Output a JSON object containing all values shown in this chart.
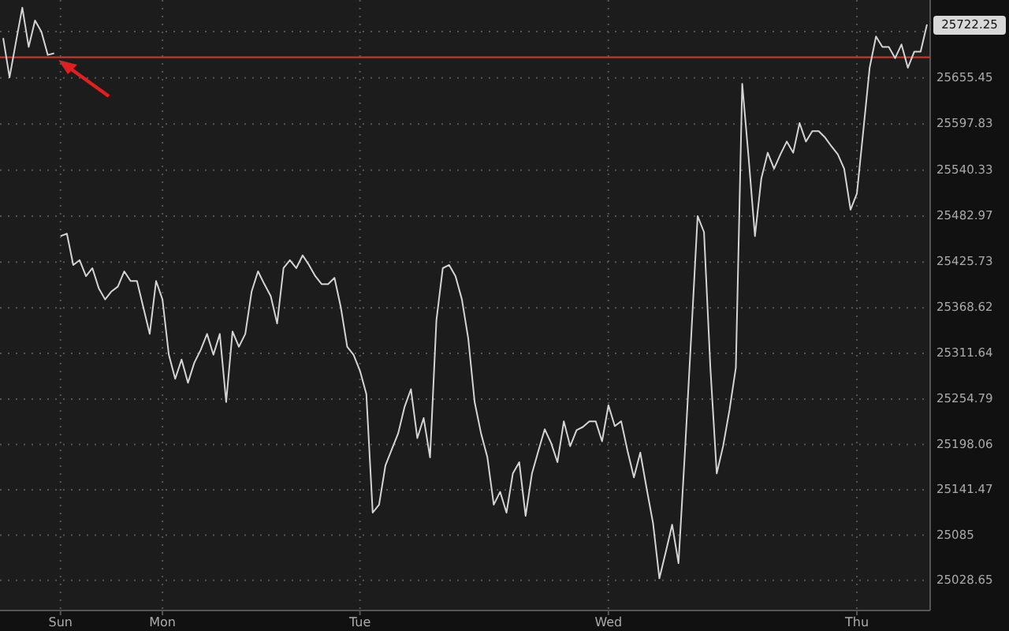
{
  "chart_data": {
    "type": "line",
    "categories": [
      null,
      null,
      null,
      null,
      null,
      null,
      null,
      null,
      null,
      "Sun",
      null,
      null,
      null,
      null,
      null,
      null,
      null,
      null,
      null,
      null,
      null,
      null,
      null,
      null,
      null,
      "Mon",
      null,
      null,
      null,
      null,
      null,
      null,
      null,
      null,
      null,
      null,
      null,
      null,
      null,
      null,
      null,
      null,
      null,
      null,
      null,
      null,
      null,
      null,
      null,
      null,
      null,
      null,
      null,
      null,
      null,
      null,
      "Tue",
      null,
      null,
      null,
      null,
      null,
      null,
      null,
      null,
      null,
      null,
      null,
      null,
      null,
      null,
      null,
      null,
      null,
      null,
      null,
      null,
      null,
      null,
      null,
      null,
      null,
      null,
      null,
      null,
      null,
      null,
      null,
      null,
      null,
      null,
      null,
      null,
      null,
      null,
      "Wed",
      null,
      null,
      null,
      null,
      null,
      null,
      null,
      null,
      null,
      null,
      null,
      null,
      null,
      null,
      null,
      null,
      null,
      null,
      null,
      null,
      null,
      null,
      null,
      null,
      null,
      null,
      null,
      null,
      null,
      null,
      null,
      null,
      null,
      null,
      null,
      null,
      null,
      null,
      "Thu",
      null,
      null,
      null,
      null,
      null,
      null,
      null,
      null,
      null,
      null,
      null
    ],
    "ylim": [
      24991,
      25752.5
    ],
    "yticks": [
      25028.65,
      25085,
      25141.47,
      25198.06,
      25254.79,
      25311.64,
      25368.62,
      25425.73,
      25482.97,
      25540.33,
      25597.83,
      25655.45,
      {
        "value": 25713.21,
        "label": null
      }
    ],
    "grid": true,
    "series": [
      {
        "color": "#d4d4d4",
        "values": [
          25705,
          25656,
          25700,
          25743,
          25694,
          25727,
          25713,
          25684,
          25686,
          null,
          null,
          null,
          null,
          null,
          null,
          null,
          null,
          null,
          null,
          null,
          null,
          null,
          null,
          null,
          null,
          null,
          null,
          null,
          null,
          null,
          null,
          null,
          null,
          null,
          null,
          null,
          null,
          null,
          null,
          null,
          null,
          null,
          null,
          null,
          null,
          null,
          null,
          null,
          null,
          null,
          null,
          null,
          null,
          null,
          null,
          null,
          null,
          null,
          null,
          null,
          null,
          null,
          null,
          null,
          null,
          null,
          null,
          null,
          null,
          null,
          null,
          null,
          null,
          null,
          null,
          null,
          null,
          null,
          null,
          null,
          null,
          null,
          null,
          null,
          null,
          null,
          null,
          null,
          null,
          null,
          null,
          null,
          null,
          null,
          null,
          null,
          null,
          null,
          null,
          null,
          null,
          null,
          null,
          null,
          null,
          null,
          null,
          null,
          null,
          null,
          null,
          null,
          null,
          null,
          null,
          null,
          null,
          null,
          null,
          null,
          null,
          null,
          null,
          null,
          null,
          null,
          null,
          null,
          null,
          null,
          null,
          null,
          null,
          null,
          null,
          null,
          null,
          null,
          null,
          null,
          null,
          null,
          null,
          null,
          null,
          null
        ]
      },
      {
        "color": "#d4d4d4",
        "values": [
          null,
          null,
          null,
          null,
          null,
          null,
          null,
          null,
          null,
          25458,
          25461,
          25422,
          25428,
          25408,
          25418,
          25393,
          25379,
          25389,
          25395,
          25414,
          25402,
          25402,
          25369,
          25336,
          25402,
          25379,
          25310,
          25280,
          25304,
          25275,
          25300,
          25316,
          25336,
          25310,
          25336,
          25251,
          25339,
          25320,
          25336,
          25389,
          25414,
          25398,
          25383,
          25349,
          25418,
          25428,
          25418,
          25434,
          25422,
          25408,
          25398,
          25398,
          25406,
          25369,
          25320,
          25310,
          25290,
          25261,
          25113,
          25123,
          25172,
          25192,
          25212,
          25245,
          25267,
          25206,
          25231,
          25182,
          25353,
          25418,
          25422,
          25408,
          25379,
          25330,
          25251,
          25212,
          25182,
          25123,
          25139,
          25113,
          25162,
          25176,
          25109,
          25162,
          25190,
          25217,
          25200,
          25176,
          25227,
          25196,
          25216,
          25220,
          25227,
          25227,
          25202,
          25247,
          25221,
          25227,
          25190,
          25157,
          25188,
          25143,
          25100,
          25031,
          25064,
          25098,
          25050,
          25188,
          25334,
          25483,
          25463,
          25294,
          25162,
          25196,
          25241,
          25294,
          25648,
          25556,
          25458,
          25530,
          25562,
          25542,
          25560,
          25576,
          25562,
          25599,
          25576,
          25589,
          25589,
          25581,
          25570,
          25560,
          25542,
          25491,
          25511,
          25589,
          25668,
          25707,
          25694,
          25694,
          25680,
          25697,
          25668,
          25688,
          25688,
          25722
        ]
      }
    ],
    "ref_lines": [
      {
        "axis": "y",
        "value": 25681,
        "color": "#c0392b"
      }
    ],
    "annotations": [
      "25722.25"
    ]
  }
}
